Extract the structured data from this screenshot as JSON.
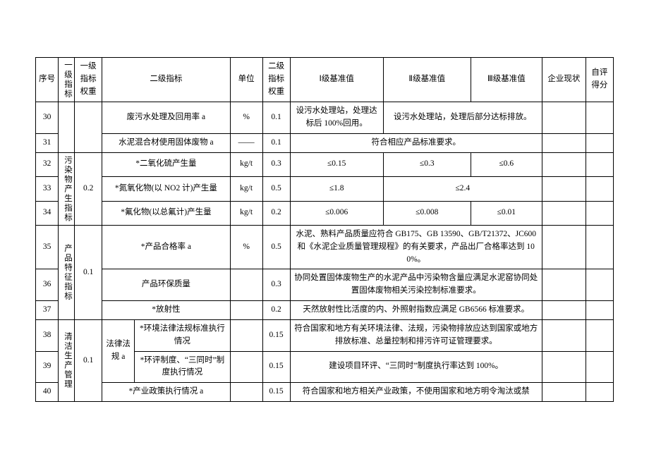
{
  "colors": {
    "border": "#000000",
    "bg": "#ffffff",
    "text": "#000000"
  },
  "font": {
    "family": "SimSun",
    "size_pt": 9
  },
  "header": {
    "seq": "序号",
    "level1": "一级指标",
    "level1_weight": "一级指标权重",
    "level2": "二级指标",
    "unit": "单位",
    "level2_weight": "二级指标权重",
    "bench1": "Ⅰ级基准值",
    "bench2": "Ⅱ级基准值",
    "bench3": "Ⅲ级基准值",
    "current": "企业现状",
    "score": "自评得分"
  },
  "r30": {
    "seq": "30",
    "l2": "废污水处理及回用率 a",
    "unit": "%",
    "w2": "0.1",
    "b1": "设污水处理站，处理达标后 100%回用。",
    "b23": "设污水处理站，处理后部分达标排放。"
  },
  "r31": {
    "seq": "31",
    "l2": "水泥混合材使用固体废物 a",
    "unit": "——",
    "w2": "0.1",
    "b": "符合相应产品标准要求。"
  },
  "grp32": {
    "l1": "污染物产生指标",
    "w1": "0.2"
  },
  "r32": {
    "seq": "32",
    "l2": "*二氧化硫产生量",
    "unit": "kg/t",
    "w2": "0.3",
    "b1": "≤0.15",
    "b2": "≤0.3",
    "b3": "≤0.6"
  },
  "r33": {
    "seq": "33",
    "l2": "*氮氧化物(以 NO2 计)产生量",
    "unit": "kg/t",
    "w2": "0.5",
    "b1": "≤1.8",
    "b23": "≤2.4"
  },
  "r34": {
    "seq": "34",
    "l2": "*氟化物(以总氟计)产生量",
    "unit": "kg/t",
    "w2": "0.2",
    "b1": "≤0.006",
    "b2": "≤0.008",
    "b3": "≤0.01"
  },
  "grp35": {
    "l1": "产品特征指标",
    "w1": "0.1"
  },
  "r35": {
    "seq": "35",
    "l2": "*产品合格率 a",
    "unit": "%",
    "w2": "0.5",
    "b": "水泥、熟料产品质量应符合 GB175、GB 13590、GB/T21372、JC600 和《水泥企业质量管理规程》的有关要求，产品出厂合格率达到 100%。"
  },
  "r36": {
    "seq": "36",
    "l2": "产品环保质量",
    "unit": "",
    "w2": "0.3",
    "b": "协同处置固体废物生产的水泥产品中污染物含量应满足水泥窑协同处置固体废物相关污染控制标准要求。"
  },
  "r37": {
    "seq": "37",
    "l2": "*放射性",
    "unit": "",
    "w2": "0.2",
    "b": "天然放射性比活度的内、外照射指数应满足 GB6566 标准要求。"
  },
  "grp38": {
    "l1": "清洁生产管理",
    "w1": "0.1",
    "sub": "法律法规 a"
  },
  "r38": {
    "seq": "38",
    "l2": "*环境法律法规标准执行情况",
    "unit": "",
    "w2": "0.15",
    "b": "符合国家和地方有关环境法律、法规，污染物排放应达到国家或地方排放标准、总量控制和排污许可证管理要求。"
  },
  "r39": {
    "seq": "39",
    "l2": "*环评制度、“三同时”制度执行情况",
    "unit": "",
    "w2": "0.15",
    "b": "建设项目环评、“三同时”制度执行率达到 100%。"
  },
  "r40": {
    "seq": "40",
    "l2": "*产业政策执行情况 a",
    "unit": "",
    "w2": "0.15",
    "b": "符合国家和地方相关产业政策，不使用国家和地方明令淘汰或禁"
  }
}
